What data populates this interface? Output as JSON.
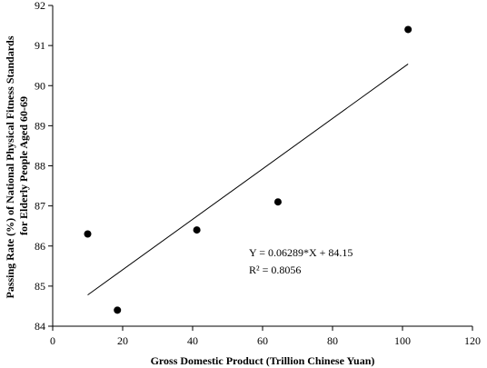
{
  "chart_data": {
    "type": "scatter",
    "xlabel": "Gross Domestic Product (Trillion Chinese Yuan)",
    "ylabel_lines": [
      "Passing Rate (%) of National Physical Fitness Standards",
      "for Elderly People Aged 60-69"
    ],
    "xlim": [
      0,
      120
    ],
    "ylim": [
      84,
      92
    ],
    "xticks": [
      0,
      20,
      40,
      60,
      80,
      100,
      120
    ],
    "yticks": [
      84,
      85,
      86,
      87,
      88,
      89,
      90,
      91,
      92
    ],
    "grid": false,
    "points": [
      {
        "x": 10.0,
        "y": 86.3
      },
      {
        "x": 18.5,
        "y": 84.4
      },
      {
        "x": 41.2,
        "y": 86.4
      },
      {
        "x": 64.4,
        "y": 87.1
      },
      {
        "x": 101.6,
        "y": 91.4
      }
    ],
    "trendline": {
      "slope": 0.06289,
      "intercept": 84.15,
      "x_start": 10.0,
      "x_end": 101.6
    },
    "annotations": [
      "Y = 0.06289*X + 84.15",
      "R² = 0.8056"
    ]
  }
}
